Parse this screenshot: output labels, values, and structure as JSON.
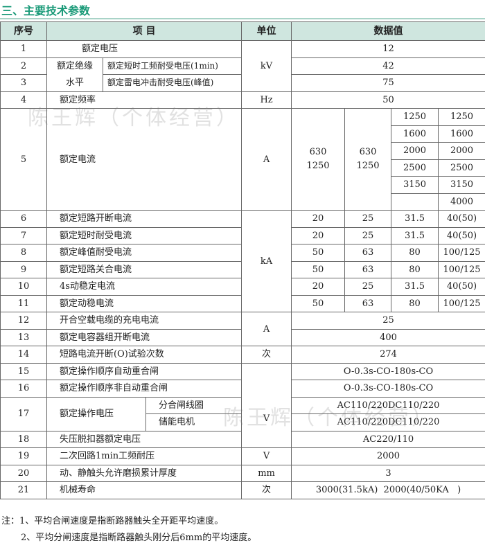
{
  "title": "三、主要技术参数",
  "header": {
    "seq": "序号",
    "item": "项 目",
    "unit": "单位",
    "value": "数据值"
  },
  "rows": {
    "r1": {
      "seq": "1",
      "item": "额定电压",
      "unit": "kV",
      "value": "12"
    },
    "ins": "额定绝缘水平",
    "r2": {
      "seq": "2",
      "item": "额定短时工频耐受电压(1min)",
      "value": "42"
    },
    "r3": {
      "seq": "3",
      "item": "额定雷电冲击耐受电压(峰值)",
      "value": "75"
    },
    "r4": {
      "seq": "4",
      "item": "额定频率",
      "unit": "Hz",
      "value": "50"
    },
    "r5": {
      "seq": "5",
      "item": "额定电流",
      "unit": "A",
      "d1": "630 1250",
      "d2": "630 1250",
      "d3": [
        "1250",
        "1600",
        "2000",
        "2500",
        "3150"
      ],
      "d4": [
        "1250",
        "1600",
        "2000",
        "2500",
        "3150",
        "4000"
      ]
    },
    "ka_unit": "kA",
    "r6": {
      "seq": "6",
      "item": "额定短路开断电流",
      "v": [
        "20",
        "25",
        "31.5",
        "40(50)"
      ]
    },
    "r7": {
      "seq": "7",
      "item": "额定短时耐受电流",
      "v": [
        "20",
        "25",
        "31.5",
        "40(50)"
      ]
    },
    "r8": {
      "seq": "8",
      "item": "额定峰值耐受电流",
      "v": [
        "50",
        "63",
        "80",
        "100/125"
      ]
    },
    "r9": {
      "seq": "9",
      "item": "额定短路关合电流",
      "v": [
        "50",
        "63",
        "80",
        "100/125"
      ]
    },
    "r10": {
      "seq": "10",
      "item": "4s动稳定电流",
      "v": [
        "20",
        "25",
        "31.5",
        "40(50)"
      ]
    },
    "r11": {
      "seq": "11",
      "item": "额定动稳电流",
      "v": [
        "50",
        "63",
        "80",
        "100/125"
      ]
    },
    "a_unit": "A",
    "r12": {
      "seq": "12",
      "item": "开合空载电缆的充电电流",
      "value": "25"
    },
    "r13": {
      "seq": "13",
      "item": "额定电容器组开断电流",
      "value": "400"
    },
    "r14": {
      "seq": "14",
      "item": "短路电流开断(O)试验次数",
      "unit": "次",
      "value": "274"
    },
    "v_unit": "V",
    "r15": {
      "seq": "15",
      "item": "额定操作顺序自动重合闸",
      "value": "O-0.3s-CO-180s-CO"
    },
    "r16": {
      "seq": "16",
      "item": "额定操作顺序非自动重合闸",
      "value": "O-0.3s-CO-180s-CO"
    },
    "r17": {
      "seq": "17",
      "item": "额定操作电压",
      "sub1": "分合闸线圈",
      "val1": "AC110/220DC110/220",
      "sub2": "储能电机",
      "val2": "AC110/220DC110/220"
    },
    "r18": {
      "seq": "18",
      "item": "失压脱扣器额定电压",
      "value": "AC220/110"
    },
    "r19": {
      "seq": "19",
      "item": "二次回路1min工频耐压",
      "unit": "V",
      "value": "2000"
    },
    "r20": {
      "seq": "20",
      "item": "动、静触头允许磨损累计厚度",
      "unit": "mm",
      "value": "3"
    },
    "r21": {
      "seq": "21",
      "item": "机械寿命",
      "unit": "次",
      "value": "3000(31.5kA)  2000(40/50KA   )"
    }
  },
  "notes": [
    "注：1、平均合闸速度是指断路器触头全开距平均速度。",
    "2、平均分闸速度是指断路器触头刚分后6mm的平均速度。"
  ],
  "watermark": "陈王辉（个体经营）",
  "colors": {
    "title": "#1a9a78",
    "header_bg": "#cfe6df"
  }
}
